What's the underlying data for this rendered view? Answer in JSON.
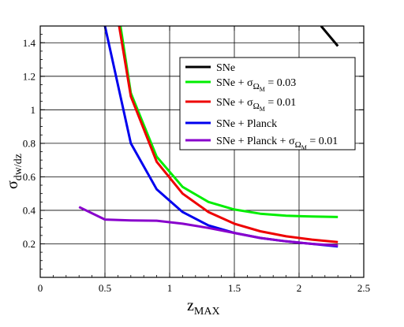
{
  "chart_data": {
    "type": "line",
    "xlabel": {
      "base": "z",
      "sub": "MAX"
    },
    "ylabel": {
      "base": "σ",
      "sub": "dw/dz"
    },
    "xlim": [
      0,
      2.5
    ],
    "ylim": [
      0,
      1.5
    ],
    "xticks": [
      "0",
      "0.5",
      "1",
      "1.5",
      "2",
      "2.5"
    ],
    "yticks": [
      "0.2",
      "0.4",
      "0.6",
      "0.8",
      "1",
      "1.2",
      "1.4"
    ],
    "grid": true,
    "legend_position": "right",
    "series": [
      {
        "name": "SNe",
        "legend": {
          "base": "SNe"
        },
        "color": "#000000",
        "x": [
          2.17,
          2.3
        ],
        "y": [
          1.5,
          1.38
        ]
      },
      {
        "name": "SNe + σΩM = 0.03",
        "legend": {
          "base": "SNe + σ",
          "sub": "Ω",
          "subsub": "M",
          "tail": " = 0.03"
        },
        "color": "#00ee00",
        "x": [
          0.62,
          0.7,
          0.9,
          1.1,
          1.3,
          1.5,
          1.7,
          1.9,
          2.1,
          2.3
        ],
        "y": [
          1.5,
          1.1,
          0.72,
          0.54,
          0.45,
          0.405,
          0.38,
          0.368,
          0.363,
          0.36
        ]
      },
      {
        "name": "SNe + σΩM = 0.01",
        "legend": {
          "base": "SNe + σ",
          "sub": "Ω",
          "subsub": "M",
          "tail": " = 0.01"
        },
        "color": "#ee0000",
        "x": [
          0.61,
          0.7,
          0.9,
          1.1,
          1.3,
          1.5,
          1.7,
          1.9,
          2.1,
          2.3
        ],
        "y": [
          1.5,
          1.08,
          0.69,
          0.5,
          0.39,
          0.32,
          0.275,
          0.245,
          0.225,
          0.21
        ]
      },
      {
        "name": "SNe + Planck",
        "legend": {
          "base": "SNe + Planck"
        },
        "color": "#0000ee",
        "x": [
          0.5,
          0.7,
          0.9,
          1.1,
          1.3,
          1.5,
          1.7,
          1.9,
          2.1,
          2.3
        ],
        "y": [
          1.5,
          0.8,
          0.525,
          0.39,
          0.31,
          0.265,
          0.235,
          0.215,
          0.2,
          0.185
        ]
      },
      {
        "name": "SNe + Planck + σΩM = 0.01",
        "legend": {
          "base": "SNe + Planck + σ",
          "sub": "Ω",
          "subsub": "M",
          "tail": " = 0.01"
        },
        "color": "#8800cc",
        "x": [
          0.3,
          0.5,
          0.7,
          0.9,
          1.1,
          1.3,
          1.5,
          1.7,
          1.9,
          2.1,
          2.3
        ],
        "y": [
          0.42,
          0.345,
          0.34,
          0.338,
          0.32,
          0.295,
          0.265,
          0.235,
          0.215,
          0.2,
          0.19
        ]
      }
    ]
  }
}
